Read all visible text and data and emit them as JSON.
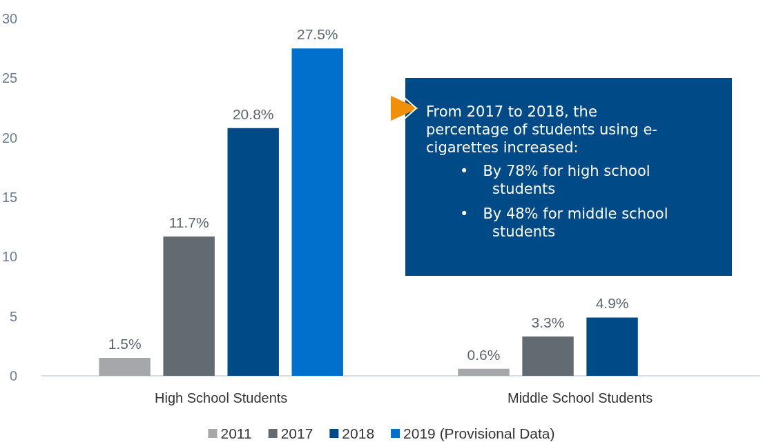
{
  "chart_data": {
    "type": "bar",
    "categories": [
      "High School Students",
      "Middle School Students"
    ],
    "series": [
      {
        "name": "2011",
        "color": "#a5a7aa",
        "values": [
          1.5,
          0.6
        ],
        "value_labels": [
          "1.5%",
          "0.6%"
        ]
      },
      {
        "name": "2017",
        "color": "#636b72",
        "values": [
          11.7,
          3.3
        ],
        "value_labels": [
          "11.7%",
          "3.3%"
        ]
      },
      {
        "name": "2018",
        "color": "#004a87",
        "values": [
          20.8,
          4.9
        ],
        "value_labels": [
          "20.8%",
          "4.9%"
        ]
      },
      {
        "name": "2019 (Provisional Data)",
        "color": "#0070cc",
        "values": [
          27.5,
          null
        ],
        "value_labels": [
          "27.5%",
          null
        ]
      }
    ],
    "ylim": [
      0,
      30
    ],
    "yticks": [
      0,
      5,
      10,
      15,
      20,
      25,
      30
    ],
    "grid": false,
    "legend": "bottom",
    "annotations": [
      "From 2017 to 2018, the percentage of students using e-cigarettes increased:",
      "• By 78% for high school students",
      "• By 48% for middle school students"
    ]
  }
}
